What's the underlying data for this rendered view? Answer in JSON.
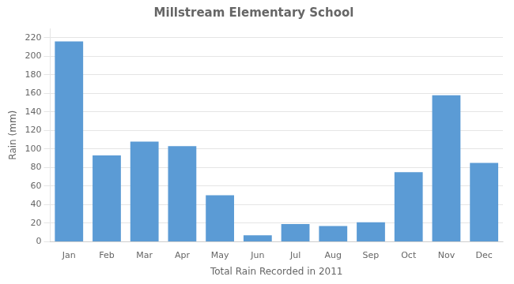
{
  "chart_data": {
    "type": "bar",
    "title": "Millstream Elementary School",
    "xlabel": "Total Rain Recorded in 2011",
    "ylabel": "Rain (mm)",
    "categories": [
      "Jan",
      "Feb",
      "Mar",
      "Apr",
      "May",
      "Jun",
      "Jul",
      "Aug",
      "Sep",
      "Oct",
      "Nov",
      "Dec"
    ],
    "values": [
      216,
      93,
      108,
      103,
      50,
      7,
      19,
      17,
      21,
      75,
      158,
      85
    ],
    "color": "#5B9BD5",
    "ylim": [
      0,
      230
    ],
    "yticks": [
      0,
      20,
      40,
      60,
      80,
      100,
      120,
      140,
      160,
      180,
      200,
      220
    ],
    "grid": true
  }
}
